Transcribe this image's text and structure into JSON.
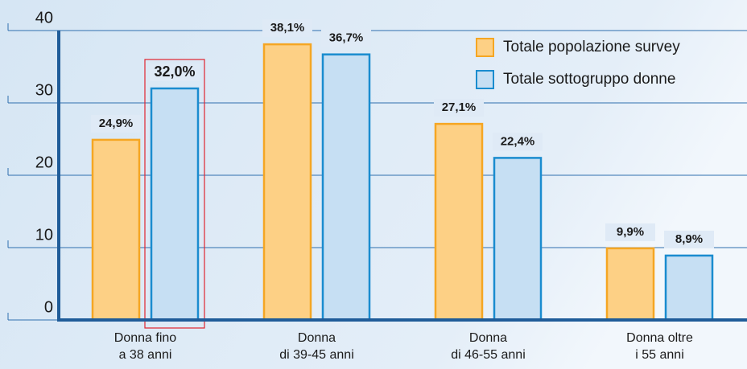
{
  "chart_data": {
    "type": "bar",
    "categories": [
      [
        "Donna fino",
        "a 38 anni"
      ],
      [
        "Donna",
        "di 39-45 anni"
      ],
      [
        "Donna",
        "di 46-55 anni"
      ],
      [
        "Donna oltre",
        "i 55 anni"
      ]
    ],
    "series": [
      {
        "name": "Totale popolazione survey",
        "color": "#fdd085",
        "stroke": "#f5a623",
        "values": [
          24.9,
          38.1,
          27.1,
          9.9
        ],
        "value_labels": [
          "24,9%",
          "38,1%",
          "27,1%",
          "9,9%"
        ]
      },
      {
        "name": "Totale sottogruppo donne",
        "color": "#c6dff3",
        "stroke": "#1a8ccf",
        "values": [
          32.0,
          36.7,
          22.4,
          8.9
        ],
        "value_labels": [
          "32,0%",
          "36,7%",
          "22,4%",
          "8,9%"
        ]
      }
    ],
    "ylim": [
      0,
      40
    ],
    "yticks": [
      0,
      10,
      20,
      30,
      40
    ],
    "grid": true
  }
}
